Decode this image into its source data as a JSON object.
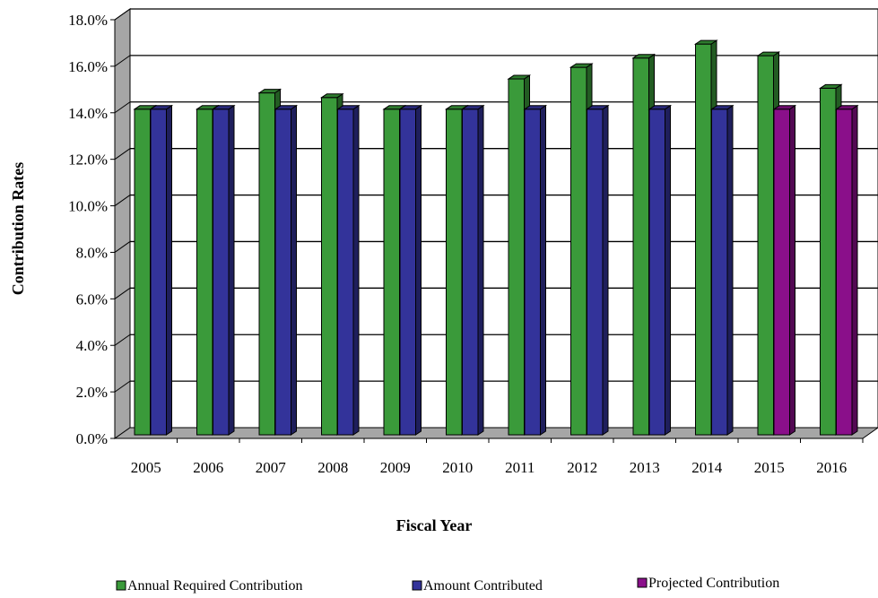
{
  "chart_data": {
    "type": "bar",
    "xlabel": "Fiscal Year",
    "ylabel": "Contribution Rates",
    "ylim": [
      0,
      18
    ],
    "yticks": [
      "0.0%",
      "2.0%",
      "4.0%",
      "6.0%",
      "8.0%",
      "10.0%",
      "12.0%",
      "14.0%",
      "16.0%",
      "18.0%"
    ],
    "grid": true,
    "legend_position": "bottom",
    "categories": [
      "2005",
      "2006",
      "2007",
      "2008",
      "2009",
      "2010",
      "2011",
      "2012",
      "2013",
      "2014",
      "2015",
      "2016"
    ],
    "series": [
      {
        "name": "Annual Required Contribution",
        "color": "#3a9a3a",
        "values": [
          14.0,
          14.0,
          14.7,
          14.5,
          14.0,
          14.0,
          15.3,
          15.8,
          16.2,
          16.8,
          16.3,
          14.9
        ]
      },
      {
        "name": "Amount Contributed",
        "color": "#33339a",
        "values": [
          14.0,
          14.0,
          14.0,
          14.0,
          14.0,
          14.0,
          14.0,
          14.0,
          14.0,
          14.0,
          null,
          null
        ]
      },
      {
        "name": "Projected Contribution",
        "color": "#8a0f8a",
        "values": [
          null,
          null,
          null,
          null,
          null,
          null,
          null,
          null,
          null,
          null,
          14.0,
          14.0
        ]
      }
    ]
  }
}
